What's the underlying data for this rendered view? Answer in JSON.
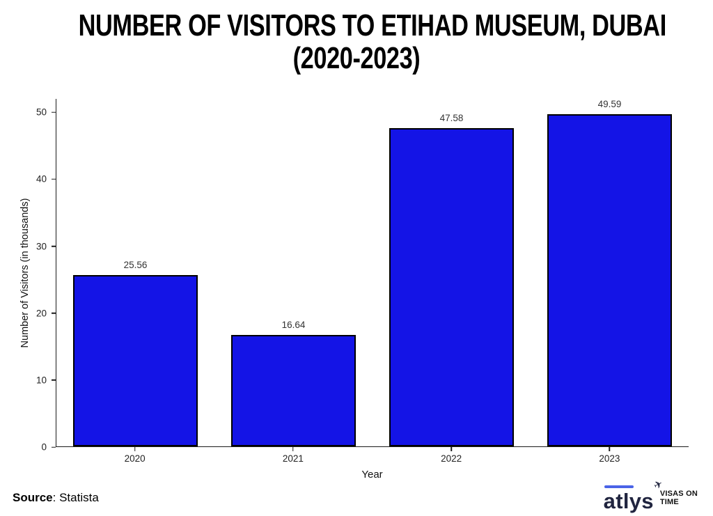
{
  "title": {
    "line1": "NUMBER OF VISITORS TO ETIHAD MUSEUM, DUBAI",
    "line2": "(2020-2023)"
  },
  "chart_data": {
    "type": "bar",
    "title": "NUMBER OF VISITORS TO ETIHAD MUSEUM, DUBAI (2020-2023)",
    "categories": [
      "2020",
      "2021",
      "2022",
      "2023"
    ],
    "values": [
      25.56,
      16.64,
      47.58,
      49.59
    ],
    "value_labels": [
      "25.56",
      "16.64",
      "47.58",
      "49.59"
    ],
    "xlabel": "Year",
    "ylabel": "Number of Visitors (in thousands)",
    "ylim": [
      0,
      52
    ],
    "yticks": [
      0,
      10,
      20,
      30,
      40,
      50
    ],
    "grid": false,
    "legend": false,
    "bar_color": "#1414E6",
    "bar_edge_color": "#000000"
  },
  "footer": {
    "source_bold": "Source",
    "source_text": ":  Statista"
  },
  "logo": {
    "brand": "atlys",
    "plane_icon": "✈",
    "tagline_line1": "VISAS ON",
    "tagline_line2": "TIME",
    "accent_color": "#4a63e7"
  }
}
